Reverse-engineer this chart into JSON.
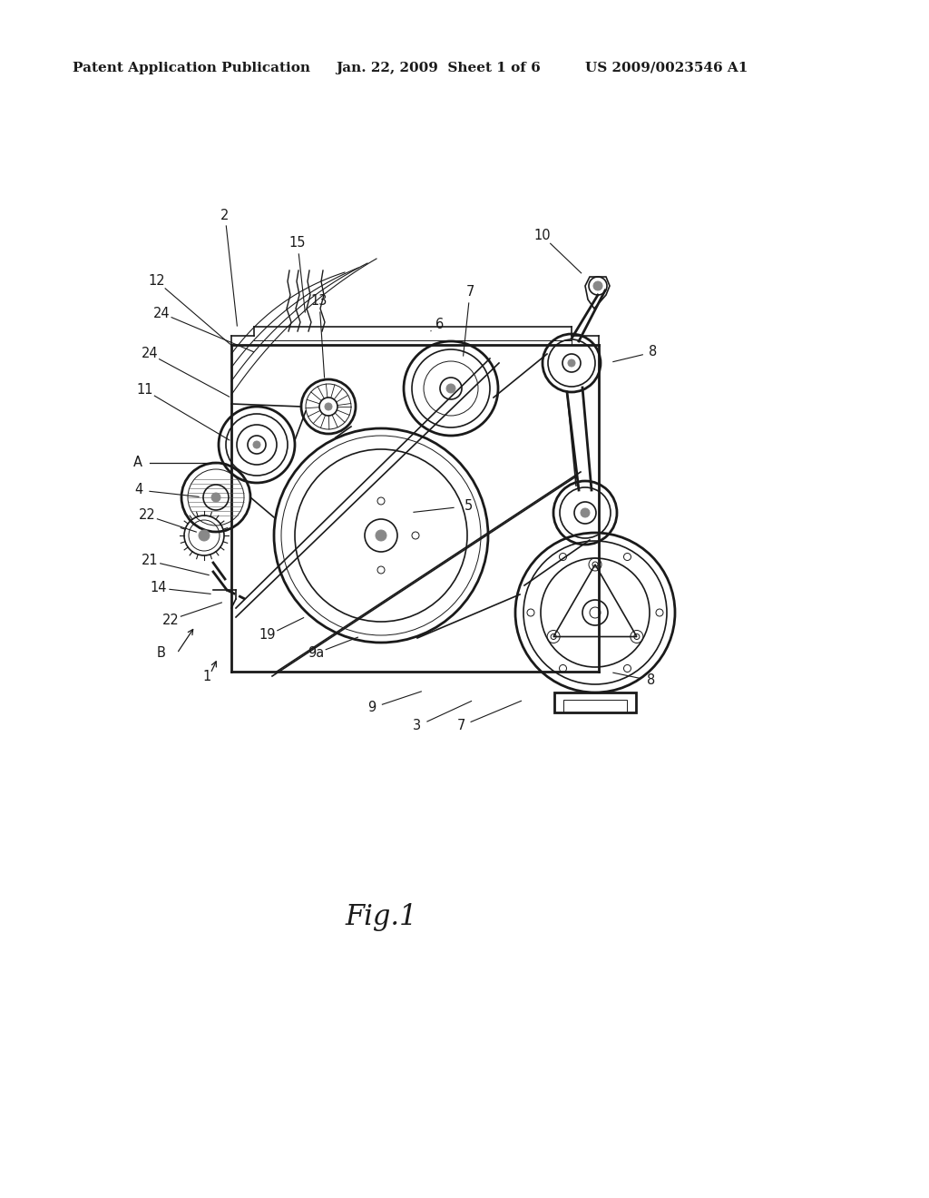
{
  "header_left": "Patent Application Publication",
  "header_center": "Jan. 22, 2009  Sheet 1 of 6",
  "header_right": "US 2009/0023546 A1",
  "figure_label": "Fig.1",
  "bg_color": "#ffffff",
  "line_color": "#1a1a1a",
  "header_fontsize": 11,
  "fig_label_fontsize": 22,
  "label_fontsize": 10.5
}
